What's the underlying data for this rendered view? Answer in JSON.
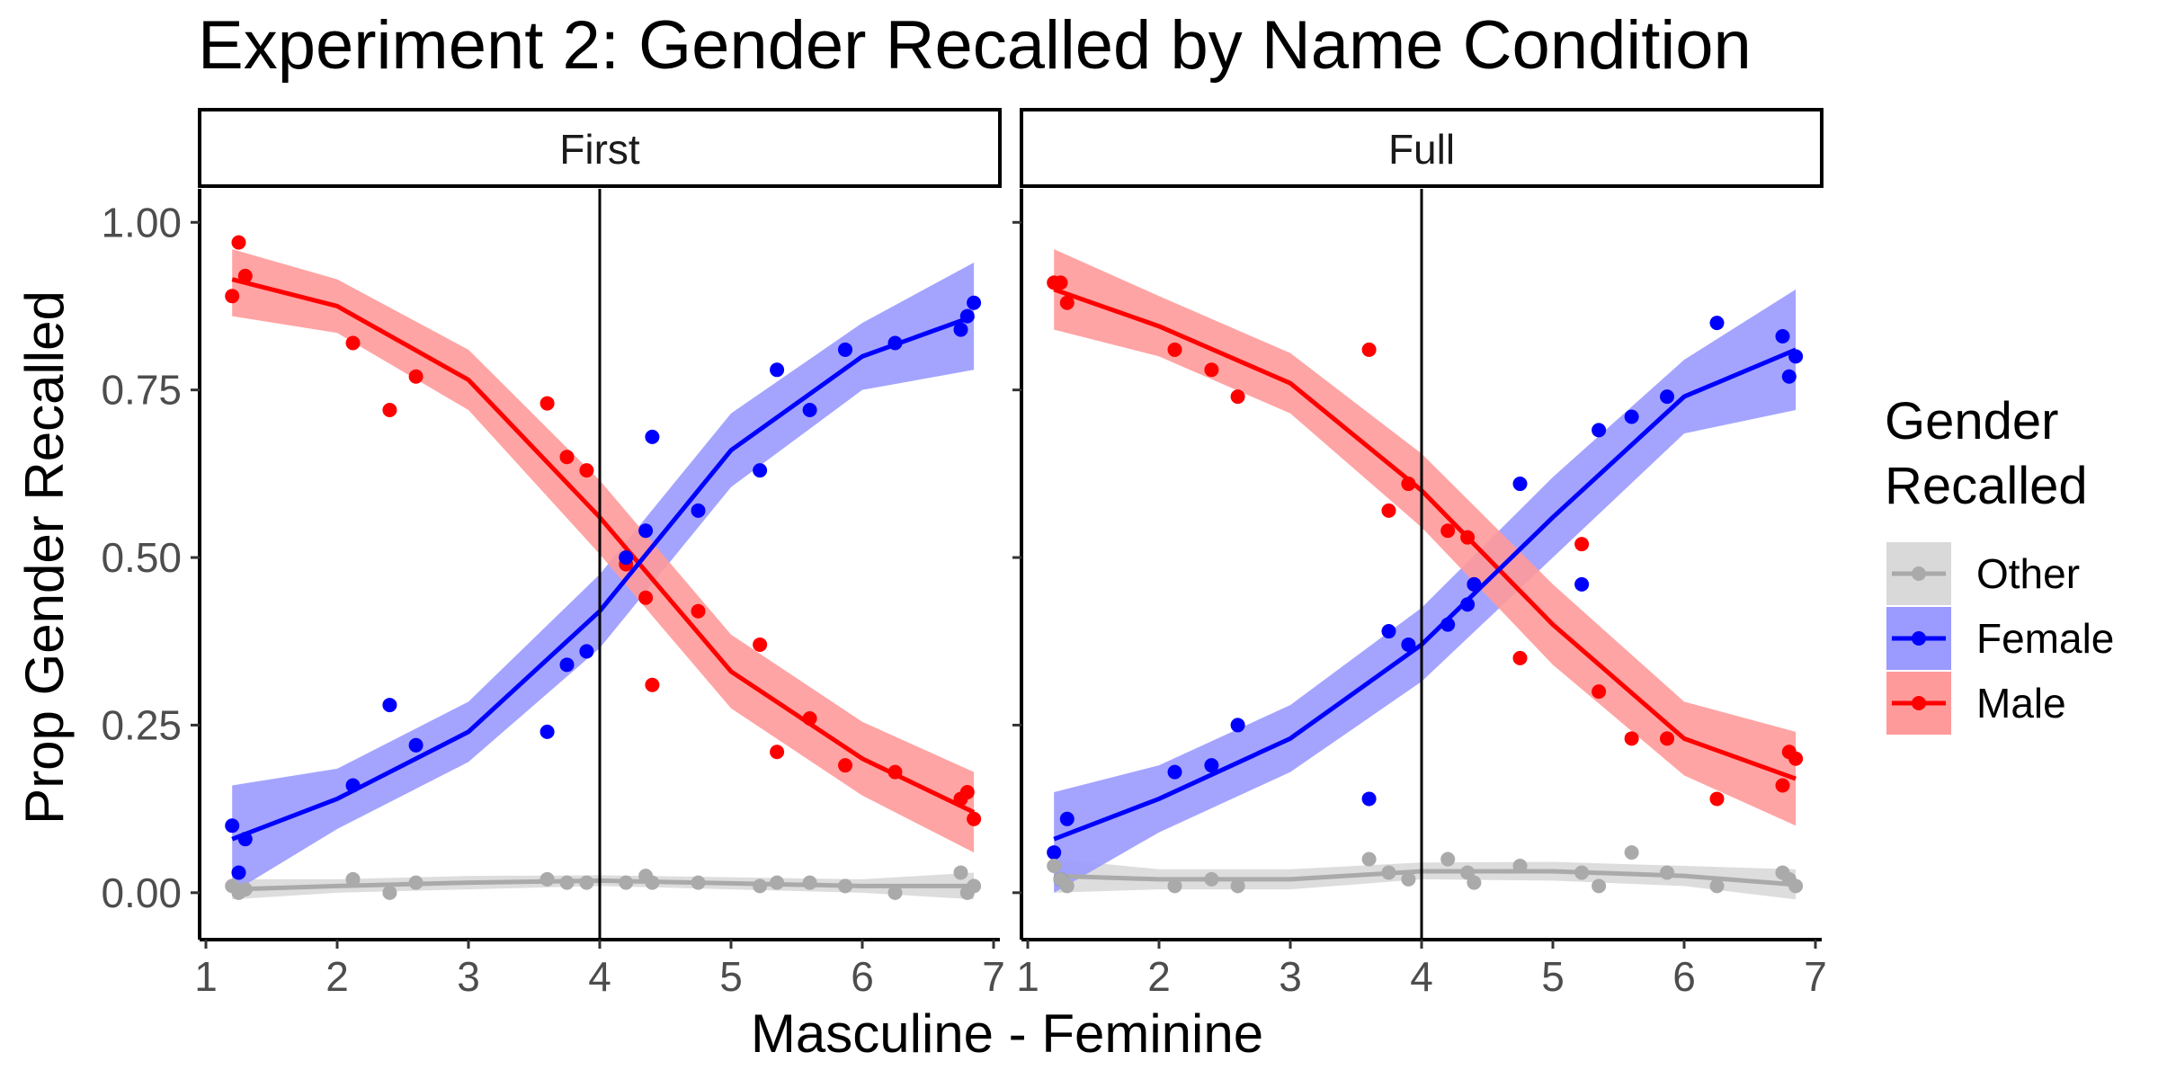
{
  "chart_data": {
    "type": "scatter",
    "title": "Experiment 2: Gender Recalled by Name Condition",
    "xlabel": "Masculine - Feminine",
    "ylabel": "Prop Gender Recalled",
    "xlim": [
      1,
      7
    ],
    "ylim": [
      -0.07,
      1.05
    ],
    "x_ticks": [
      "1",
      "2",
      "3",
      "4",
      "5",
      "6",
      "7"
    ],
    "y_ticks": [
      "0.00",
      "0.25",
      "0.50",
      "0.75",
      "1.00"
    ],
    "reference_line_x": 4,
    "grid": false,
    "legend": {
      "title": "Gender Recalled",
      "placement": "right",
      "entries": [
        "Other",
        "Female",
        "Male"
      ]
    },
    "colors": {
      "Other": "#aaaaaa",
      "Female": "#0000ff",
      "Male": "#ff0000"
    },
    "ribbon_colors": {
      "Other": "#d9d9d9",
      "Female": "#9a9aff",
      "Male": "#ff9a9a"
    },
    "panels": [
      {
        "name": "First",
        "series": [
          {
            "name": "Male",
            "points": [
              [
                1.2,
                0.89
              ],
              [
                1.25,
                0.97
              ],
              [
                1.3,
                0.92
              ],
              [
                2.12,
                0.82
              ],
              [
                2.4,
                0.72
              ],
              [
                2.6,
                0.77
              ],
              [
                3.6,
                0.73
              ],
              [
                3.75,
                0.65
              ],
              [
                3.9,
                0.63
              ],
              [
                4.2,
                0.49
              ],
              [
                4.35,
                0.44
              ],
              [
                4.4,
                0.31
              ],
              [
                4.75,
                0.42
              ],
              [
                5.22,
                0.37
              ],
              [
                5.35,
                0.21
              ],
              [
                5.6,
                0.26
              ],
              [
                5.87,
                0.19
              ],
              [
                6.25,
                0.18
              ],
              [
                6.75,
                0.14
              ],
              [
                6.8,
                0.15
              ],
              [
                6.85,
                0.11
              ]
            ],
            "fit": [
              [
                1.2,
                0.915
              ],
              [
                2,
                0.875
              ],
              [
                3,
                0.765
              ],
              [
                4,
                0.56
              ],
              [
                5,
                0.33
              ],
              [
                6,
                0.2
              ],
              [
                6.85,
                0.12
              ]
            ],
            "ci": [
              [
                1.2,
                0.86,
                0.96
              ],
              [
                2,
                0.835,
                0.915
              ],
              [
                3,
                0.72,
                0.81
              ],
              [
                4,
                0.505,
                0.615
              ],
              [
                5,
                0.275,
                0.385
              ],
              [
                6,
                0.145,
                0.255
              ],
              [
                6.85,
                0.06,
                0.18
              ]
            ]
          },
          {
            "name": "Female",
            "points": [
              [
                1.2,
                0.1
              ],
              [
                1.25,
                0.03
              ],
              [
                1.3,
                0.08
              ],
              [
                2.12,
                0.16
              ],
              [
                2.4,
                0.28
              ],
              [
                2.6,
                0.22
              ],
              [
                3.6,
                0.24
              ],
              [
                3.75,
                0.34
              ],
              [
                3.9,
                0.36
              ],
              [
                4.2,
                0.5
              ],
              [
                4.35,
                0.54
              ],
              [
                4.4,
                0.68
              ],
              [
                4.75,
                0.57
              ],
              [
                5.22,
                0.63
              ],
              [
                5.35,
                0.78
              ],
              [
                5.6,
                0.72
              ],
              [
                5.87,
                0.81
              ],
              [
                6.25,
                0.82
              ],
              [
                6.75,
                0.84
              ],
              [
                6.8,
                0.86
              ],
              [
                6.85,
                0.88
              ]
            ],
            "fit": [
              [
                1.2,
                0.08
              ],
              [
                2,
                0.14
              ],
              [
                3,
                0.24
              ],
              [
                4,
                0.42
              ],
              [
                5,
                0.66
              ],
              [
                6,
                0.8
              ],
              [
                6.85,
                0.86
              ]
            ],
            "ci": [
              [
                1.2,
                0.0,
                0.16
              ],
              [
                2,
                0.095,
                0.185
              ],
              [
                3,
                0.195,
                0.285
              ],
              [
                4,
                0.365,
                0.475
              ],
              [
                5,
                0.605,
                0.715
              ],
              [
                6,
                0.75,
                0.85
              ],
              [
                6.85,
                0.78,
                0.94
              ]
            ]
          },
          {
            "name": "Other",
            "points": [
              [
                1.2,
                0.01
              ],
              [
                1.25,
                0.0
              ],
              [
                1.3,
                0.005
              ],
              [
                2.12,
                0.02
              ],
              [
                2.4,
                0.0
              ],
              [
                2.6,
                0.015
              ],
              [
                3.6,
                0.02
              ],
              [
                3.75,
                0.015
              ],
              [
                3.9,
                0.015
              ],
              [
                4.2,
                0.015
              ],
              [
                4.35,
                0.025
              ],
              [
                4.4,
                0.015
              ],
              [
                4.75,
                0.015
              ],
              [
                5.22,
                0.01
              ],
              [
                5.35,
                0.015
              ],
              [
                5.6,
                0.015
              ],
              [
                5.87,
                0.01
              ],
              [
                6.25,
                0.0
              ],
              [
                6.75,
                0.03
              ],
              [
                6.8,
                0.0
              ],
              [
                6.85,
                0.01
              ]
            ],
            "fit": [
              [
                1.2,
                0.005
              ],
              [
                2,
                0.01
              ],
              [
                3,
                0.015
              ],
              [
                4,
                0.018
              ],
              [
                5,
                0.014
              ],
              [
                6,
                0.01
              ],
              [
                6.85,
                0.01
              ]
            ],
            "ci": [
              [
                1.2,
                -0.01,
                0.02
              ],
              [
                2,
                0.0,
                0.02
              ],
              [
                3,
                0.005,
                0.025
              ],
              [
                4,
                0.01,
                0.026
              ],
              [
                5,
                0.005,
                0.023
              ],
              [
                6,
                0.0,
                0.02
              ],
              [
                6.85,
                -0.01,
                0.03
              ]
            ]
          }
        ]
      },
      {
        "name": "Full",
        "series": [
          {
            "name": "Male",
            "points": [
              [
                1.2,
                0.91
              ],
              [
                1.25,
                0.91
              ],
              [
                1.3,
                0.88
              ],
              [
                2.12,
                0.81
              ],
              [
                2.4,
                0.78
              ],
              [
                2.6,
                0.74
              ],
              [
                3.6,
                0.81
              ],
              [
                3.75,
                0.57
              ],
              [
                3.9,
                0.61
              ],
              [
                4.2,
                0.54
              ],
              [
                4.35,
                0.53
              ],
              [
                4.4,
                0.46
              ],
              [
                4.75,
                0.35
              ],
              [
                5.22,
                0.52
              ],
              [
                5.35,
                0.3
              ],
              [
                5.6,
                0.23
              ],
              [
                5.87,
                0.23
              ],
              [
                6.25,
                0.14
              ],
              [
                6.75,
                0.16
              ],
              [
                6.8,
                0.21
              ],
              [
                6.85,
                0.2
              ]
            ],
            "fit": [
              [
                1.2,
                0.9
              ],
              [
                2,
                0.845
              ],
              [
                3,
                0.76
              ],
              [
                4,
                0.6
              ],
              [
                5,
                0.4
              ],
              [
                6,
                0.23
              ],
              [
                6.85,
                0.17
              ]
            ],
            "ci": [
              [
                1.2,
                0.84,
                0.96
              ],
              [
                2,
                0.8,
                0.89
              ],
              [
                3,
                0.715,
                0.805
              ],
              [
                4,
                0.545,
                0.655
              ],
              [
                5,
                0.34,
                0.46
              ],
              [
                6,
                0.175,
                0.285
              ],
              [
                6.85,
                0.1,
                0.24
              ]
            ]
          },
          {
            "name": "Female",
            "points": [
              [
                1.2,
                0.06
              ],
              [
                1.25,
                0.02
              ],
              [
                1.3,
                0.11
              ],
              [
                2.12,
                0.18
              ],
              [
                2.4,
                0.19
              ],
              [
                2.6,
                0.25
              ],
              [
                3.6,
                0.14
              ],
              [
                3.75,
                0.39
              ],
              [
                3.9,
                0.37
              ],
              [
                4.2,
                0.4
              ],
              [
                4.35,
                0.43
              ],
              [
                4.4,
                0.46
              ],
              [
                4.75,
                0.61
              ],
              [
                5.22,
                0.46
              ],
              [
                5.35,
                0.69
              ],
              [
                5.6,
                0.71
              ],
              [
                5.87,
                0.74
              ],
              [
                6.25,
                0.85
              ],
              [
                6.75,
                0.83
              ],
              [
                6.8,
                0.77
              ],
              [
                6.85,
                0.8
              ]
            ],
            "fit": [
              [
                1.2,
                0.08
              ],
              [
                2,
                0.14
              ],
              [
                3,
                0.23
              ],
              [
                4,
                0.37
              ],
              [
                5,
                0.56
              ],
              [
                6,
                0.74
              ],
              [
                6.85,
                0.81
              ]
            ],
            "ci": [
              [
                1.2,
                0.0,
                0.15
              ],
              [
                2,
                0.09,
                0.19
              ],
              [
                3,
                0.18,
                0.28
              ],
              [
                4,
                0.315,
                0.425
              ],
              [
                5,
                0.5,
                0.62
              ],
              [
                6,
                0.685,
                0.795
              ],
              [
                6.85,
                0.72,
                0.9
              ]
            ]
          },
          {
            "name": "Other",
            "points": [
              [
                1.2,
                0.04
              ],
              [
                1.25,
                0.02
              ],
              [
                1.3,
                0.01
              ],
              [
                2.12,
                0.01
              ],
              [
                2.4,
                0.02
              ],
              [
                2.6,
                0.01
              ],
              [
                3.6,
                0.05
              ],
              [
                3.75,
                0.03
              ],
              [
                3.9,
                0.02
              ],
              [
                4.2,
                0.05
              ],
              [
                4.35,
                0.03
              ],
              [
                4.4,
                0.015
              ],
              [
                4.75,
                0.04
              ],
              [
                5.22,
                0.03
              ],
              [
                5.35,
                0.01
              ],
              [
                5.6,
                0.06
              ],
              [
                5.87,
                0.03
              ],
              [
                6.25,
                0.01
              ],
              [
                6.75,
                0.03
              ],
              [
                6.8,
                0.02
              ],
              [
                6.85,
                0.01
              ]
            ],
            "fit": [
              [
                1.2,
                0.025
              ],
              [
                2,
                0.02
              ],
              [
                3,
                0.02
              ],
              [
                4,
                0.032
              ],
              [
                5,
                0.032
              ],
              [
                6,
                0.025
              ],
              [
                6.85,
                0.012
              ]
            ],
            "ci": [
              [
                1.2,
                0.0,
                0.05
              ],
              [
                2,
                0.005,
                0.035
              ],
              [
                3,
                0.005,
                0.035
              ],
              [
                4,
                0.02,
                0.045
              ],
              [
                5,
                0.018,
                0.046
              ],
              [
                6,
                0.01,
                0.04
              ],
              [
                6.85,
                -0.01,
                0.035
              ]
            ]
          }
        ]
      }
    ]
  }
}
